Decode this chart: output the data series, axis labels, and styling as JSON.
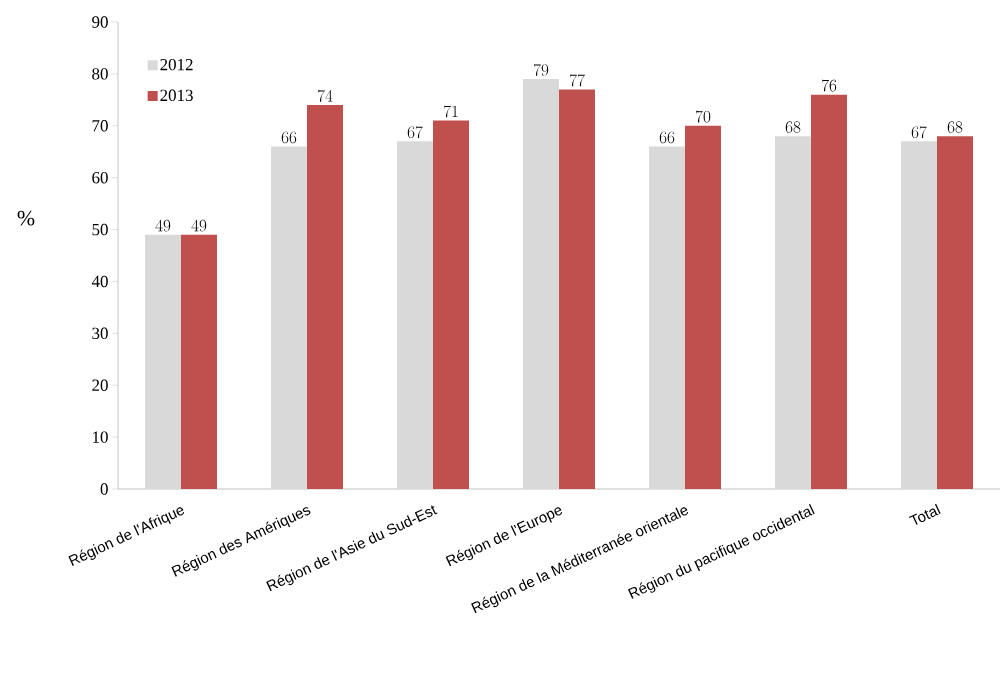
{
  "chart_data": {
    "type": "bar",
    "ylabel": "%",
    "categories": [
      "Région de l'Afrique",
      "Région des Amériques",
      "Région de l'Asie du Sud-Est",
      "Région de l'Europe",
      "Région de la Méditerranée orientale",
      "Région du pacifique occidental",
      "Total"
    ],
    "series": [
      {
        "name": "2012",
        "color": "#d9d9d9",
        "values": [
          49,
          66,
          67,
          79,
          66,
          68,
          67
        ]
      },
      {
        "name": "2013",
        "color": "#c0504d",
        "values": [
          49,
          74,
          71,
          77,
          70,
          76,
          68
        ]
      }
    ],
    "ylim": [
      0,
      90
    ],
    "yticks": [
      0,
      10,
      20,
      30,
      40,
      50,
      60,
      70,
      80,
      90
    ],
    "data_labels": true,
    "legend": "top left",
    "grid": false
  }
}
